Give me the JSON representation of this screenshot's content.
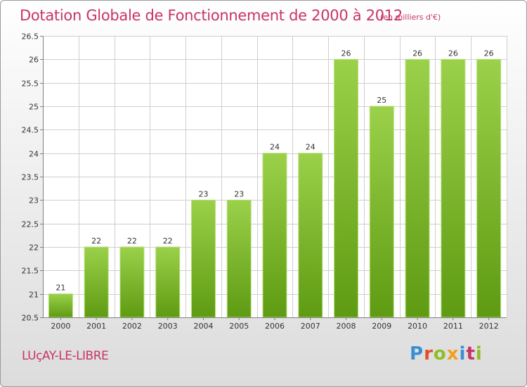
{
  "header": {
    "title": "Dotation Globale de Fonctionnement de 2000 à 2012",
    "unit": "(en milliers d'€)"
  },
  "footer": {
    "commune": "LUçAY-LE-LIBRE",
    "brand": "Proxiti",
    "brand_letter_colors": [
      "#3a8fd3",
      "#e0502a",
      "#8cbf26",
      "#f0a020",
      "#3a8fd3",
      "#c8336a",
      "#8cbf26"
    ]
  },
  "colors": {
    "title": "#c8336a",
    "bar_top": "#9bd14a",
    "bar_bottom": "#5e9b12",
    "grid": "#cfcfcf",
    "axis": "#808080"
  },
  "chart_data": {
    "type": "bar",
    "categories": [
      "2000",
      "2001",
      "2002",
      "2003",
      "2004",
      "2005",
      "2006",
      "2007",
      "2008",
      "2009",
      "2010",
      "2011",
      "2012"
    ],
    "values": [
      21,
      22,
      22,
      22,
      23,
      23,
      24,
      24,
      26,
      25,
      26,
      26,
      26
    ],
    "data_labels": [
      "21",
      "22",
      "22",
      "22",
      "23",
      "23",
      "24",
      "24",
      "26",
      "25",
      "26",
      "26",
      "26"
    ],
    "ylim": [
      20.5,
      26.5
    ],
    "yticks": [
      20.5,
      21,
      21.5,
      22,
      22.5,
      23,
      23.5,
      24,
      24.5,
      25,
      25.5,
      26,
      26.5
    ],
    "ytick_labels": [
      "20.5",
      "21",
      "21.5",
      "22",
      "22.5",
      "23",
      "23.5",
      "24",
      "24.5",
      "25",
      "25.5",
      "26",
      "26.5"
    ],
    "grid": true
  }
}
